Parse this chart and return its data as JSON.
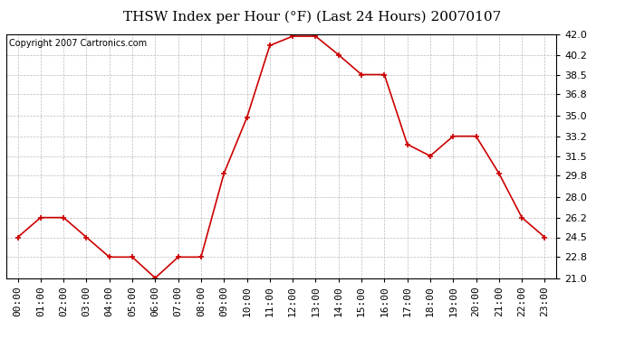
{
  "title": "THSW Index per Hour (°F) (Last 24 Hours) 20070107",
  "copyright": "Copyright 2007 Cartronics.com",
  "hours": [
    "00:00",
    "01:00",
    "02:00",
    "03:00",
    "04:00",
    "05:00",
    "06:00",
    "07:00",
    "08:00",
    "09:00",
    "10:00",
    "11:00",
    "12:00",
    "13:00",
    "14:00",
    "15:00",
    "16:00",
    "17:00",
    "18:00",
    "19:00",
    "20:00",
    "21:00",
    "22:00",
    "23:00"
  ],
  "values": [
    24.5,
    26.2,
    26.2,
    24.5,
    22.8,
    22.8,
    21.0,
    22.8,
    22.8,
    30.0,
    34.8,
    41.0,
    41.8,
    41.8,
    40.2,
    38.5,
    38.5,
    32.5,
    31.5,
    33.2,
    33.2,
    30.0,
    26.2,
    24.5
  ],
  "x_values": [
    0,
    1,
    2,
    3,
    4,
    5,
    6,
    7,
    8,
    9,
    10,
    11,
    12,
    13,
    14,
    15,
    16,
    17,
    18,
    19,
    20,
    21,
    22,
    23
  ],
  "yticks": [
    21.0,
    22.8,
    24.5,
    26.2,
    28.0,
    29.8,
    31.5,
    33.2,
    35.0,
    36.8,
    38.5,
    40.2,
    42.0
  ],
  "ylim": [
    21.0,
    42.0
  ],
  "line_color": "#cc0000",
  "marker_color": "#cc0000",
  "bg_color": "#ffffff",
  "plot_bg_color": "#ffffff",
  "grid_color": "#bbbbbb",
  "title_fontsize": 11,
  "copyright_fontsize": 7,
  "tick_fontsize": 8
}
